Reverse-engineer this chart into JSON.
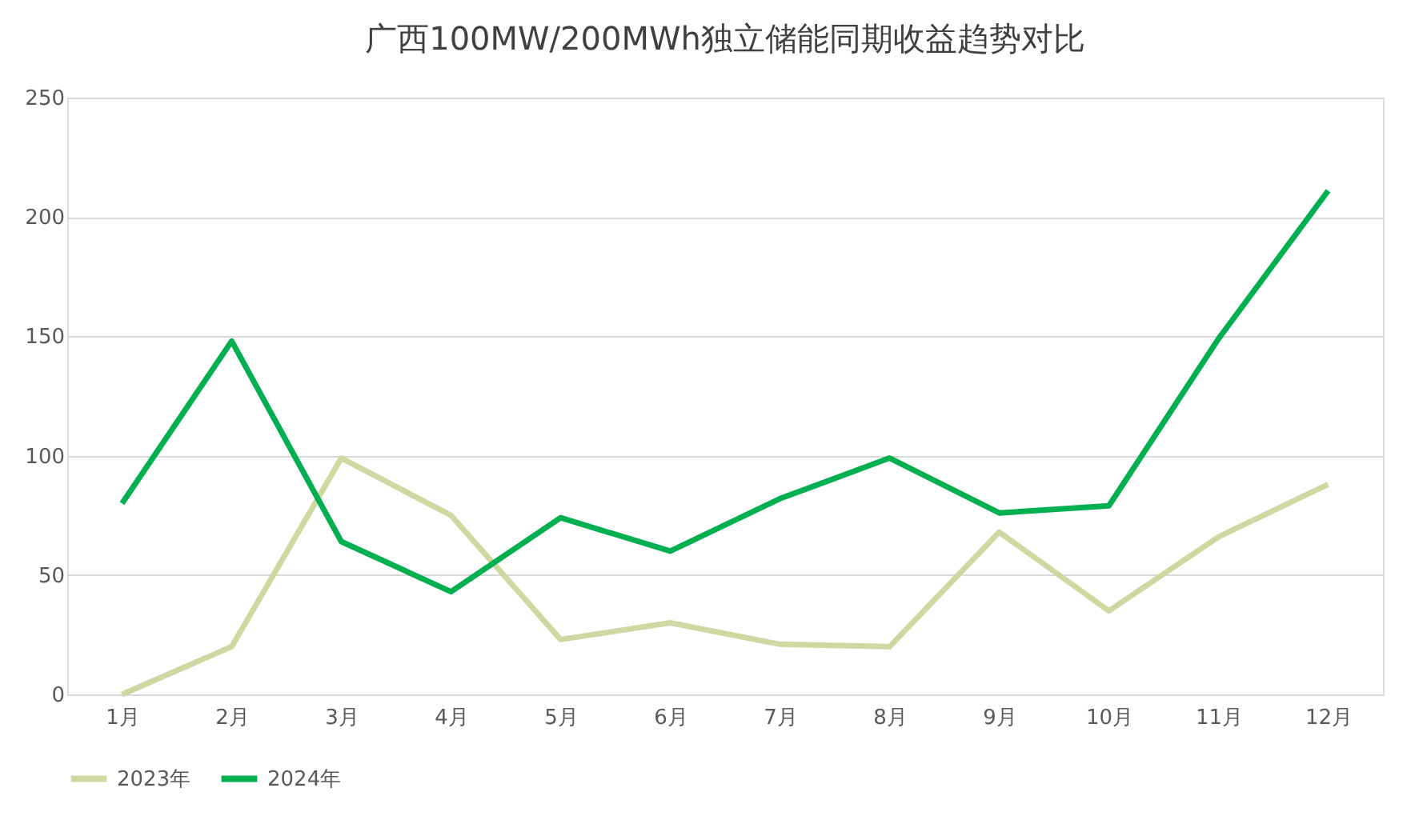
{
  "chart_data": {
    "type": "line",
    "title": "广西100MW/200MWh独立储能同期收益趋势对比",
    "categories": [
      "1月",
      "2月",
      "3月",
      "4月",
      "5月",
      "6月",
      "7月",
      "8月",
      "9月",
      "10月",
      "11月",
      "12月"
    ],
    "series": [
      {
        "name": "2023年",
        "color": "#cdd9a0",
        "values": [
          0,
          20,
          99,
          75,
          23,
          30,
          21,
          20,
          68,
          35,
          66,
          88
        ]
      },
      {
        "name": "2024年",
        "color": "#00b050",
        "values": [
          80,
          148,
          64,
          43,
          74,
          60,
          82,
          99,
          76,
          79,
          149,
          211
        ]
      }
    ],
    "ylim": [
      0,
      250
    ],
    "yticks": [
      0,
      50,
      100,
      150,
      200,
      250
    ],
    "grid": "y",
    "legend": "bottom",
    "marker": "none",
    "line_style": "solid"
  }
}
